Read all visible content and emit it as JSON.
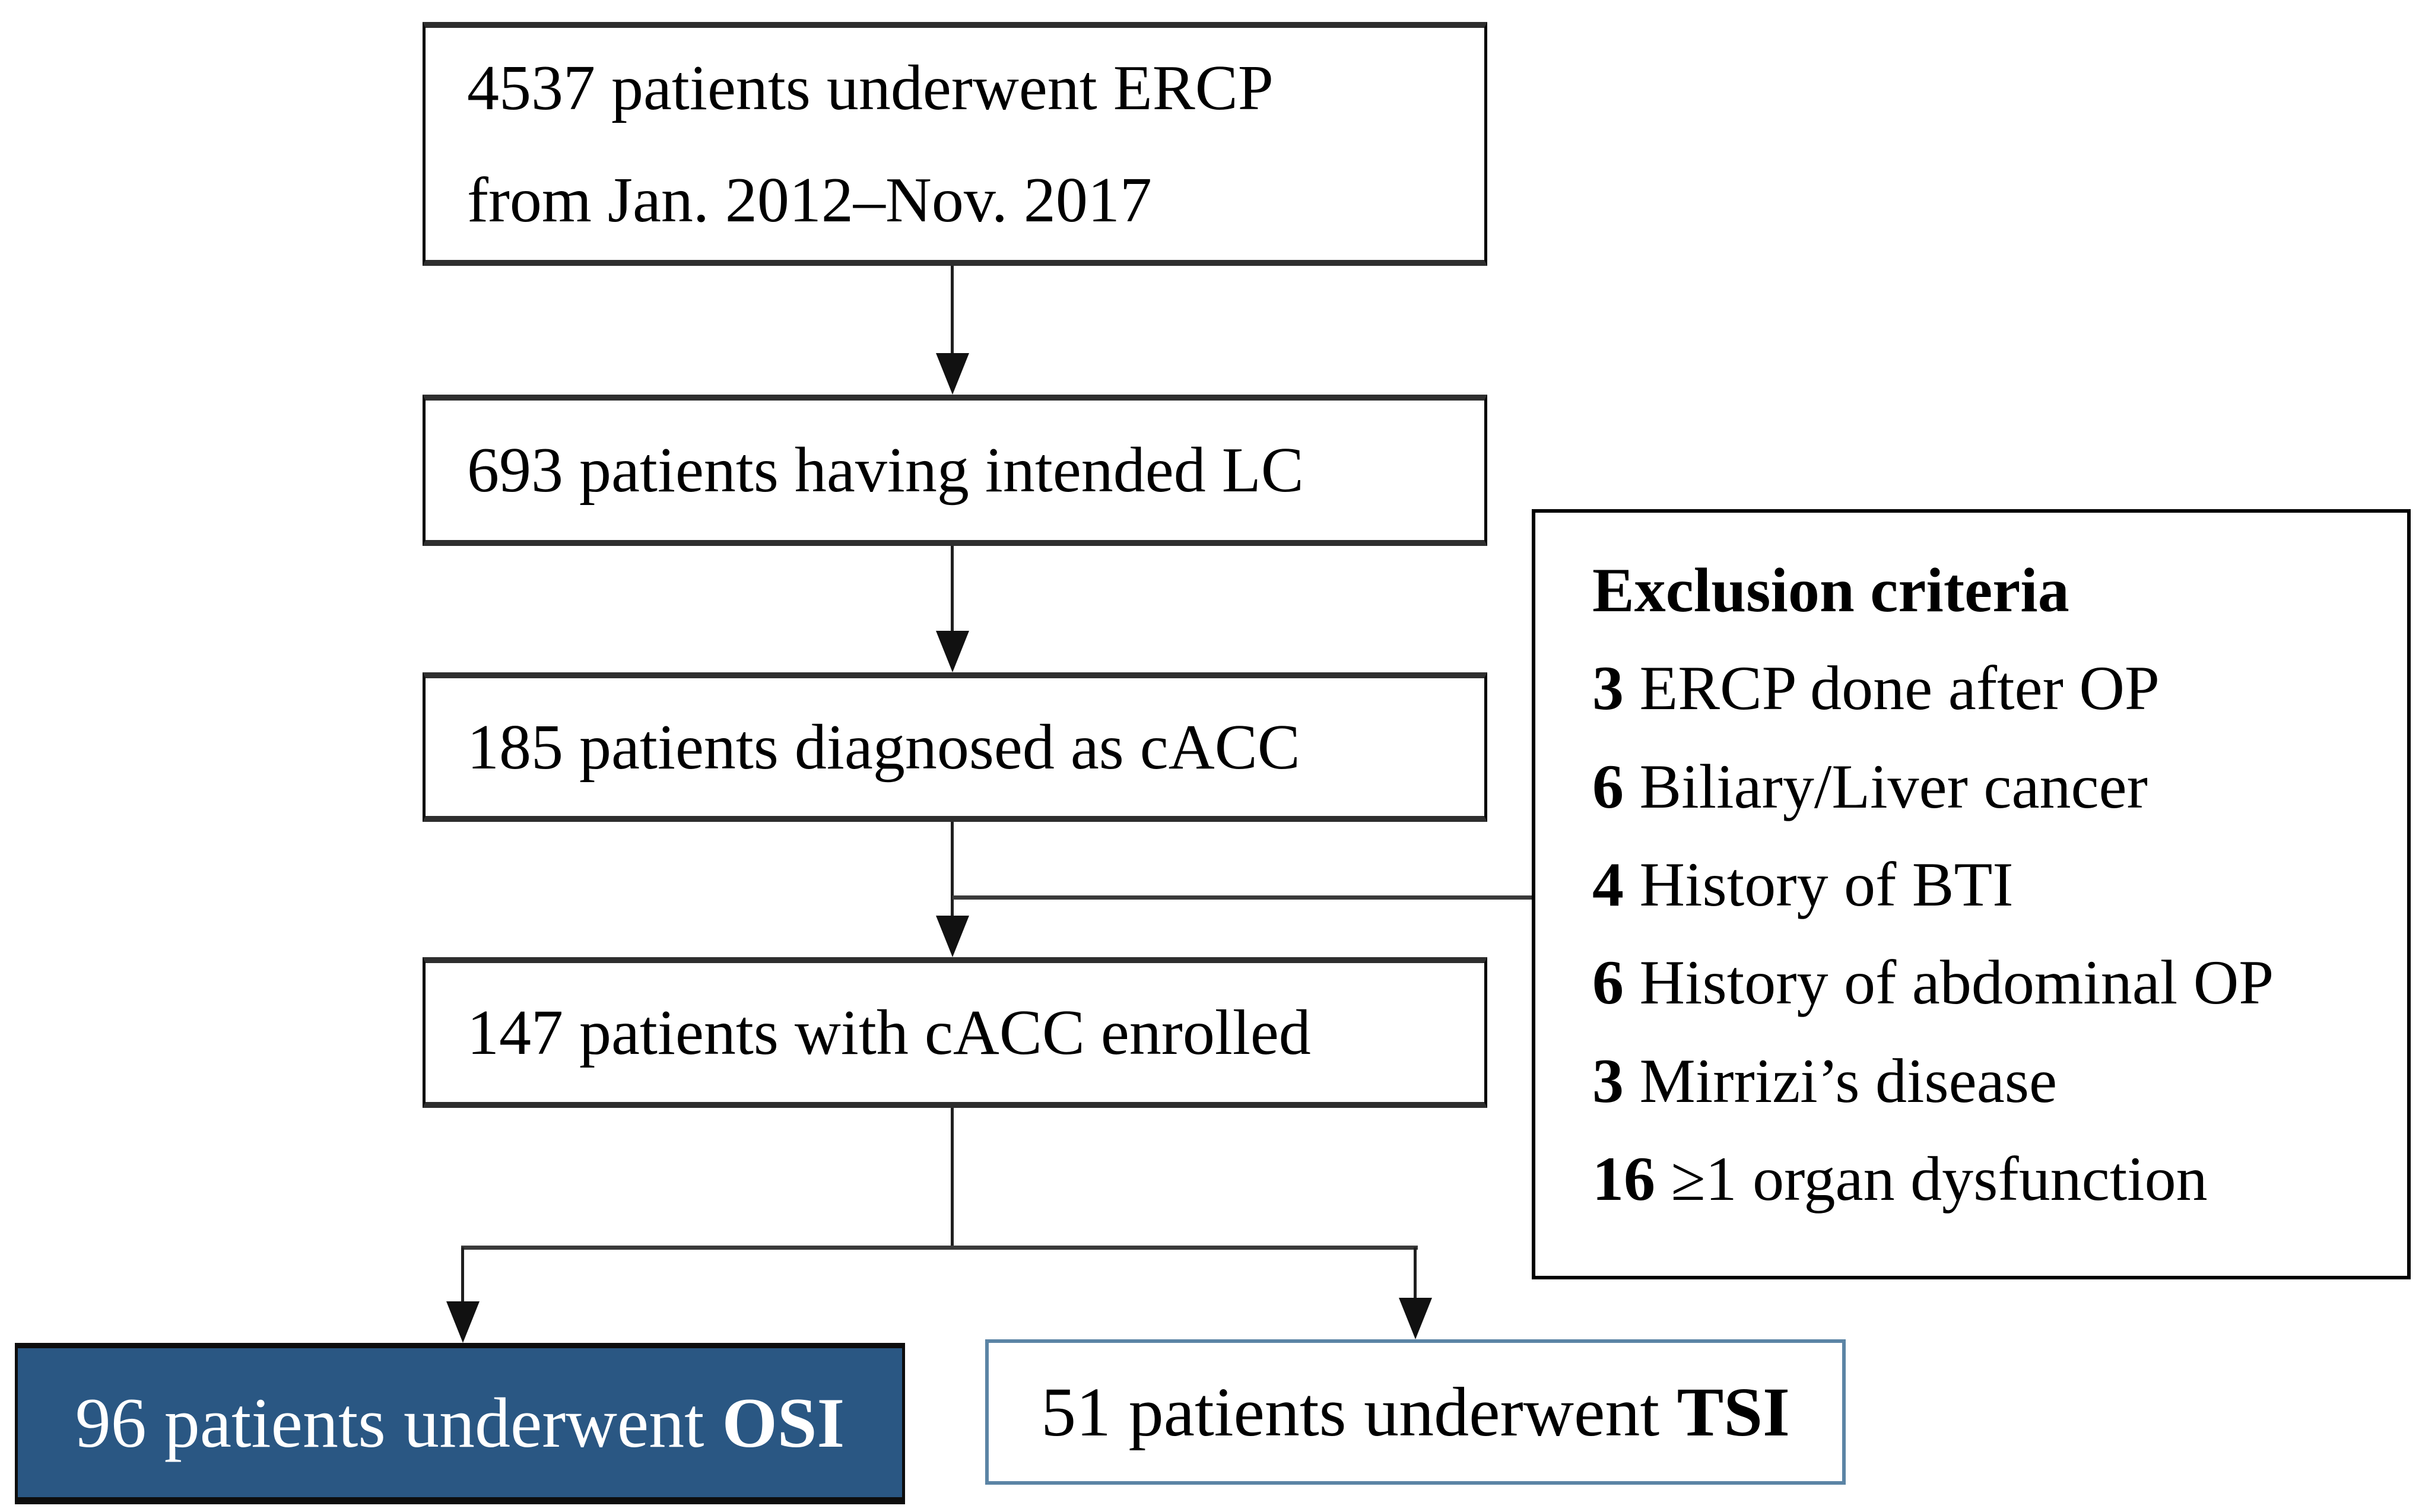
{
  "flowchart": {
    "nodes": {
      "ercp": {
        "line1": "4537 patients underwent ERCP",
        "line2": "from Jan. 2012–Nov. 2017"
      },
      "lc": {
        "text": "693 patients having intended LC"
      },
      "cacc": {
        "text": "185 patients diagnosed as cACC"
      },
      "enrolled": {
        "text": "147 patients with cACC enrolled"
      },
      "osi": {
        "prefix": "96 patients underwent ",
        "bold": "OSI"
      },
      "tsi": {
        "prefix": "51 patients underwent ",
        "bold": "TSI"
      }
    },
    "exclusion": {
      "title": "Exclusion criteria",
      "items": [
        {
          "count": "3",
          "label": "ERCP done after OP"
        },
        {
          "count": "6",
          "label": "Biliary/Liver cancer"
        },
        {
          "count": "4",
          "label": "History of BTI"
        },
        {
          "count": "6",
          "label": "History of abdominal OP"
        },
        {
          "count": "3",
          "label": "Mirrizi’s disease"
        },
        {
          "count": "16",
          "label": "≥1 organ dysfunction"
        }
      ]
    },
    "colors": {
      "osi_fill": "#2A5783",
      "osi_text": "#FFFFFF",
      "tsi_border": "#5B84A5",
      "box_border": "#000000",
      "connector": "#1F1F1F"
    }
  }
}
